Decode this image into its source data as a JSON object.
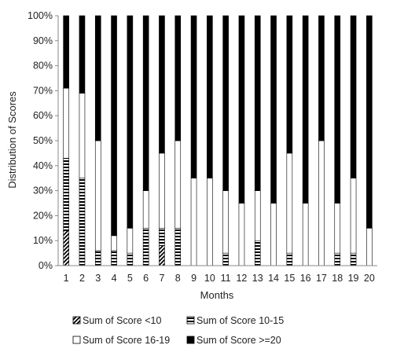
{
  "chart_data": {
    "type": "bar",
    "stacked": true,
    "percent_stacked": true,
    "xlabel": "Months",
    "ylabel": "Distribution of Scores",
    "ylim": [
      0,
      100
    ],
    "ytick_labels": [
      "0%",
      "10%",
      "20%",
      "30%",
      "40%",
      "50%",
      "60%",
      "70%",
      "80%",
      "90%",
      "100%"
    ],
    "categories": [
      "1",
      "2",
      "3",
      "4",
      "5",
      "6",
      "7",
      "8",
      "9",
      "10",
      "11",
      "12",
      "13",
      "14",
      "15",
      "16",
      "17",
      "18",
      "19",
      "20"
    ],
    "grid": false,
    "legend_position": "bottom",
    "series": [
      {
        "name": "Sum of Score <10",
        "pattern": "diagonal",
        "color": "#000000",
        "values": [
          14,
          0,
          0,
          0,
          0,
          0,
          8,
          0,
          0,
          0,
          0,
          0,
          0,
          0,
          0,
          0,
          0,
          0,
          0,
          0
        ]
      },
      {
        "name": "Sum of Score 10-15",
        "pattern": "horizontal",
        "color": "#000000",
        "values": [
          29,
          35,
          6,
          6,
          5,
          15,
          7,
          15,
          0,
          0,
          5,
          0,
          10,
          0,
          5,
          0,
          0,
          5,
          5,
          0
        ]
      },
      {
        "name": "Sum of Score 16-19",
        "pattern": "white",
        "color": "#ffffff",
        "values": [
          28,
          34,
          44,
          6,
          10,
          15,
          30,
          35,
          35,
          35,
          25,
          25,
          20,
          25,
          40,
          25,
          50,
          20,
          30,
          15
        ]
      },
      {
        "name": "Sum of Score >=20",
        "pattern": "solid",
        "color": "#000000",
        "values": [
          29,
          31,
          50,
          88,
          85,
          70,
          55,
          50,
          65,
          65,
          70,
          75,
          70,
          75,
          55,
          75,
          50,
          75,
          65,
          85
        ]
      }
    ]
  }
}
